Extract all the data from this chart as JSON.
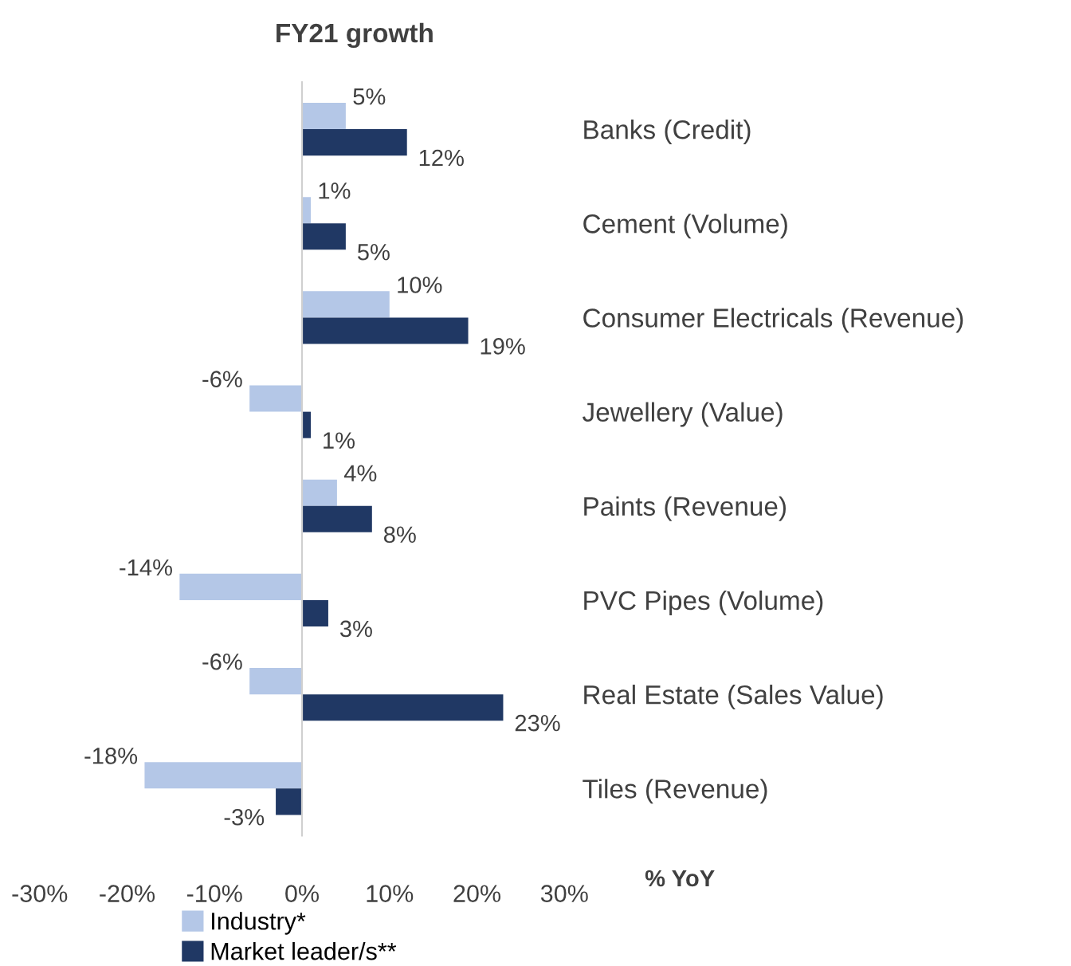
{
  "chart_data": {
    "type": "bar",
    "orientation": "horizontal",
    "title": "FY21 growth",
    "xlabel": "% YoY",
    "categories": [
      "Banks (Credit)",
      "Cement (Volume)",
      "Consumer Electricals (Revenue)",
      "Jewellery (Value)",
      "Paints (Revenue)",
      "PVC Pipes (Volume)",
      "Real Estate (Sales Value)",
      "Tiles (Revenue)"
    ],
    "series": [
      {
        "name": "Industry*",
        "color": "#b4c7e7",
        "values": [
          5,
          1,
          10,
          -6,
          4,
          -14,
          -6,
          -18
        ],
        "value_labels": [
          "5%",
          "1%",
          "10%",
          "-6%",
          "4%",
          "-14%",
          "-6%",
          "-18%"
        ]
      },
      {
        "name": "Market leader/s**",
        "color": "#203864",
        "values": [
          12,
          5,
          19,
          1,
          8,
          3,
          23,
          -3
        ],
        "value_labels": [
          "12%",
          "5%",
          "19%",
          "1%",
          "8%",
          "3%",
          "23%",
          "-3%"
        ]
      }
    ],
    "xlim": [
      -30,
      30
    ],
    "xticks": [
      {
        "value": -30,
        "label": "-30%"
      },
      {
        "value": -20,
        "label": "-20%"
      },
      {
        "value": -10,
        "label": "-10%"
      },
      {
        "value": 0,
        "label": "0%"
      },
      {
        "value": 10,
        "label": "10%"
      },
      {
        "value": 20,
        "label": "20%"
      },
      {
        "value": 30,
        "label": "30%"
      }
    ],
    "legend": "bottom left"
  }
}
